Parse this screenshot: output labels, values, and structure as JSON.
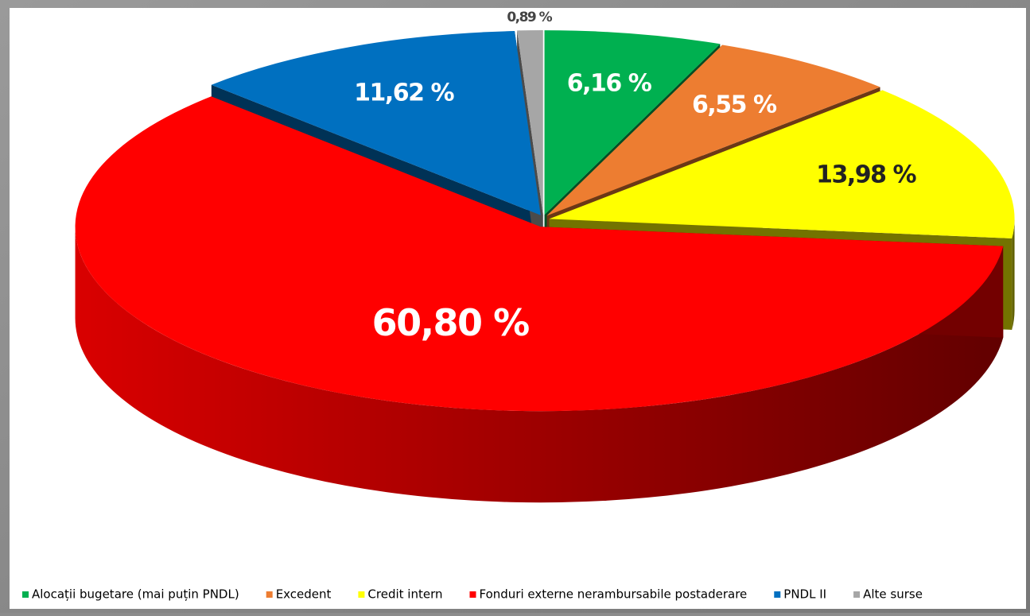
{
  "chart_data": {
    "type": "pie",
    "categories": [
      "Alocații bugetare (mai puțin PNDL)",
      "Excedent",
      "Credit intern",
      "Fonduri externe nerambursabile postaderare",
      "PNDL II",
      "Alte surse"
    ],
    "values": [
      6.16,
      6.55,
      13.98,
      60.8,
      11.62,
      0.89
    ],
    "value_labels": [
      "6,16 %",
      "6,55 %",
      "13,98 %",
      "60,80 %",
      "11,62 %",
      "0,89 %"
    ],
    "colors": [
      "#00b050",
      "#ed7d31",
      "#ffff00",
      "#ff0000",
      "#0070c0",
      "#a6a6a6"
    ],
    "legend": "bottom"
  }
}
